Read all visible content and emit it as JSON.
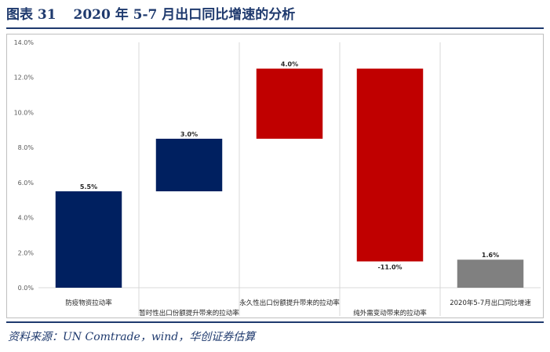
{
  "figure": {
    "label": "图表 31",
    "title": "2020 年 5-7 月出口同比增速的分析",
    "source": "资料来源：UN Comtrade，wind，华创证券估算"
  },
  "colors": {
    "navy": "#002060",
    "red": "#c00000",
    "gray": "#808080",
    "accent": "#1f3a6e"
  },
  "chart_data": {
    "type": "bar",
    "subtype": "waterfall",
    "title": "",
    "xlabel": "",
    "ylabel": "",
    "ylim": [
      0,
      14
    ],
    "y_ticks": [
      "0.0%",
      "2.0%",
      "4.0%",
      "6.0%",
      "8.0%",
      "10.0%",
      "12.0%",
      "14.0%"
    ],
    "grid": "vertical-category-separators",
    "categories": [
      "防疫物资拉动率",
      "暂时性出口份额提升带来的拉动率",
      "永久性出口份额提升带来的拉动率",
      "纯外需变动带来的拉动率",
      "2020年5-7月出口同比增速"
    ],
    "values": [
      5.5,
      3.0,
      4.0,
      -11.0,
      1.6
    ],
    "bases": [
      0,
      5.5,
      8.5,
      12.5,
      0
    ],
    "data_labels": [
      "5.5%",
      "3.0%",
      "4.0%",
      "-11.0%",
      "1.6%"
    ],
    "bar_colors": [
      "navy",
      "navy",
      "red",
      "red",
      "gray"
    ]
  }
}
